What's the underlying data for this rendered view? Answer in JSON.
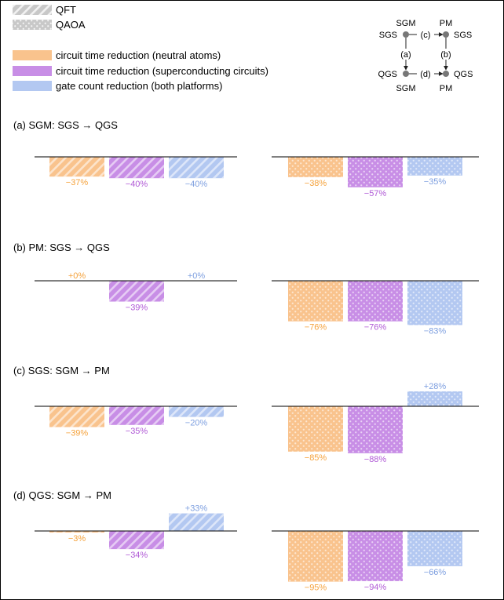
{
  "legend": {
    "qft_label": "QFT",
    "qaoa_label": "QAOA",
    "neutral_label": "circuit time reduction (neutral atoms)",
    "sc_label": "circuit time reduction (superconducting circuits)",
    "gate_label": "gate count reduction (both platforms)"
  },
  "colors": {
    "neutral": "#f9c38d",
    "neutral_text": "#f5a23c",
    "sc": "#c88ee6",
    "sc_text": "#b05ad6",
    "gate": "#b3c8f1",
    "gate_text": "#7fa0e0"
  },
  "schematic": {
    "top_left_top": "SGM",
    "top_left_side": "SGS",
    "top_right_top": "PM",
    "top_right_side": "SGS",
    "edge_c": "(c)",
    "edge_a": "(a)",
    "edge_b": "(b)",
    "edge_d": "(d)",
    "bottom_left_side": "QGS",
    "bottom_left_bottom": "SGM",
    "bottom_right_side": "QGS",
    "bottom_right_bottom": "PM"
  },
  "chart_data": {
    "type": "bar",
    "unit": "%",
    "series": [
      "circuit time reduction (neutral atoms)",
      "circuit time reduction (superconducting circuits)",
      "gate count reduction (both platforms)"
    ],
    "algorithms": [
      "QFT",
      "QAOA"
    ],
    "panels": [
      {
        "title": "(a) SGM: SGS → QGS",
        "QFT": [
          -37,
          -40,
          -40
        ],
        "QAOA": [
          -38,
          -57,
          -35
        ],
        "labels_QFT": [
          "−37%",
          "−40%",
          "−40%"
        ],
        "labels_QAOA": [
          "−38%",
          "−57%",
          "−35%"
        ]
      },
      {
        "title": "(b) PM: SGS → QGS",
        "QFT": [
          0,
          -39,
          0
        ],
        "QAOA": [
          -76,
          -76,
          -83
        ],
        "labels_QFT": [
          "+0%",
          "−39%",
          "+0%"
        ],
        "labels_QAOA": [
          "−76%",
          "−76%",
          "−83%"
        ]
      },
      {
        "title": "(c) SGS: SGM → PM",
        "QFT": [
          -39,
          -35,
          -20
        ],
        "QAOA": [
          -85,
          -88,
          28
        ],
        "labels_QFT": [
          "−39%",
          "−35%",
          "−20%"
        ],
        "labels_QAOA": [
          "−85%",
          "−88%",
          "+28%"
        ]
      },
      {
        "title": "(d) QGS: SGM → PM",
        "QFT": [
          -3,
          -34,
          33
        ],
        "QAOA": [
          -95,
          -94,
          -66
        ],
        "labels_QFT": [
          "−3%",
          "−34%",
          "+33%"
        ],
        "labels_QAOA": [
          "−95%",
          "−94%",
          "−66%"
        ]
      }
    ]
  }
}
